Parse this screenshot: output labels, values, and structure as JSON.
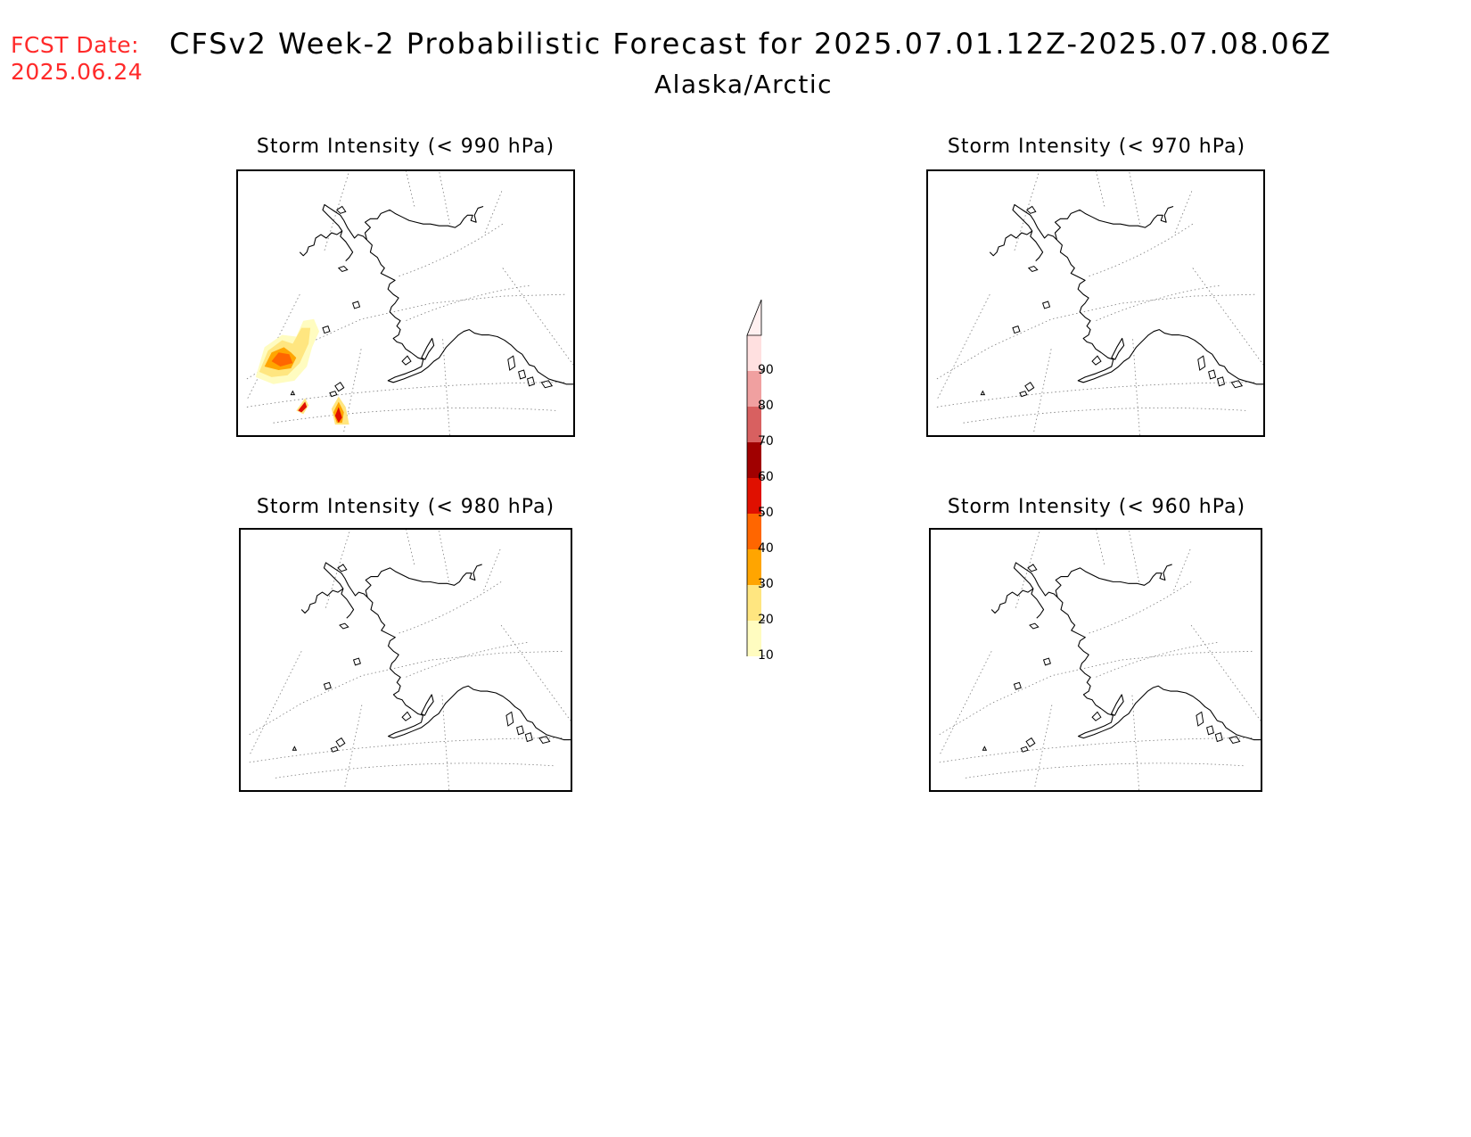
{
  "header": {
    "fcst_label": "FCST Date:",
    "fcst_date": "2025.06.24",
    "title": "CFSv2 Week-2 Probabilistic Forecast for 2025.07.01.12Z-2025.07.08.06Z",
    "region": "Alaska/Arctic"
  },
  "panels": [
    {
      "id": "p990",
      "title": "Storm Intensity (< 990 hPa)",
      "has_shading": true
    },
    {
      "id": "p970",
      "title": "Storm Intensity (< 970 hPa)",
      "has_shading": false
    },
    {
      "id": "p980",
      "title": "Storm Intensity (< 980 hPa)",
      "has_shading": false
    },
    {
      "id": "p960",
      "title": "Storm Intensity (< 960 hPa)",
      "has_shading": false
    }
  ],
  "colorbar": {
    "levels": [
      "10",
      "20",
      "30",
      "40",
      "50",
      "60",
      "70",
      "80",
      "90"
    ],
    "colors": [
      "#fffcc0",
      "#ffe680",
      "#ffa500",
      "#ff6600",
      "#e01000",
      "#a00000",
      "#d86060",
      "#f0a0a0",
      "#ffe0e0"
    ]
  }
}
